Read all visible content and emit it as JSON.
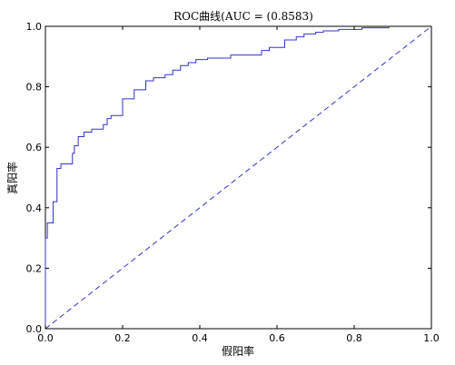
{
  "chart_data": {
    "type": "line",
    "title": "ROC曲线(AUC = (0.8583)",
    "xlabel": "假阳率",
    "ylabel": "真阳率",
    "xlim": [
      0.0,
      1.0
    ],
    "ylim": [
      0.0,
      1.0
    ],
    "xticks": [
      "0.0",
      "0.2",
      "0.4",
      "0.6",
      "0.8",
      "1.0"
    ],
    "yticks": [
      "0.0",
      "0.2",
      "0.4",
      "0.6",
      "0.8",
      "1.0"
    ],
    "grid": false,
    "legend": "none",
    "series": [
      {
        "style": "solid-step",
        "color": "#3333cc",
        "x": [
          0.0,
          0.0,
          0.005,
          0.005,
          0.02,
          0.02,
          0.03,
          0.03,
          0.04,
          0.04,
          0.07,
          0.07,
          0.075,
          0.075,
          0.085,
          0.085,
          0.1,
          0.1,
          0.12,
          0.12,
          0.15,
          0.15,
          0.16,
          0.16,
          0.17,
          0.17,
          0.2,
          0.2,
          0.23,
          0.23,
          0.26,
          0.26,
          0.28,
          0.28,
          0.31,
          0.31,
          0.33,
          0.33,
          0.35,
          0.35,
          0.37,
          0.37,
          0.39,
          0.39,
          0.42,
          0.42,
          0.48,
          0.48,
          0.56,
          0.56,
          0.58,
          0.58,
          0.62,
          0.62,
          0.65,
          0.65,
          0.67,
          0.67,
          0.7,
          0.7,
          0.72,
          0.72,
          0.76,
          0.76,
          0.82,
          0.82,
          0.89,
          0.89
        ],
        "y": [
          0.0,
          0.3,
          0.3,
          0.35,
          0.35,
          0.42,
          0.42,
          0.53,
          0.53,
          0.545,
          0.545,
          0.58,
          0.58,
          0.605,
          0.605,
          0.635,
          0.635,
          0.65,
          0.65,
          0.66,
          0.66,
          0.675,
          0.675,
          0.695,
          0.695,
          0.705,
          0.705,
          0.76,
          0.76,
          0.79,
          0.79,
          0.82,
          0.82,
          0.83,
          0.83,
          0.84,
          0.84,
          0.855,
          0.855,
          0.87,
          0.87,
          0.88,
          0.88,
          0.89,
          0.89,
          0.895,
          0.895,
          0.905,
          0.905,
          0.92,
          0.92,
          0.93,
          0.93,
          0.955,
          0.955,
          0.965,
          0.965,
          0.975,
          0.975,
          0.98,
          0.98,
          0.985,
          0.985,
          0.99,
          0.99,
          0.995,
          0.995,
          1.0
        ]
      },
      {
        "style": "dashed",
        "color": "#3333cc",
        "x": [
          0.0,
          1.0
        ],
        "y": [
          0.0,
          1.0
        ]
      }
    ]
  }
}
